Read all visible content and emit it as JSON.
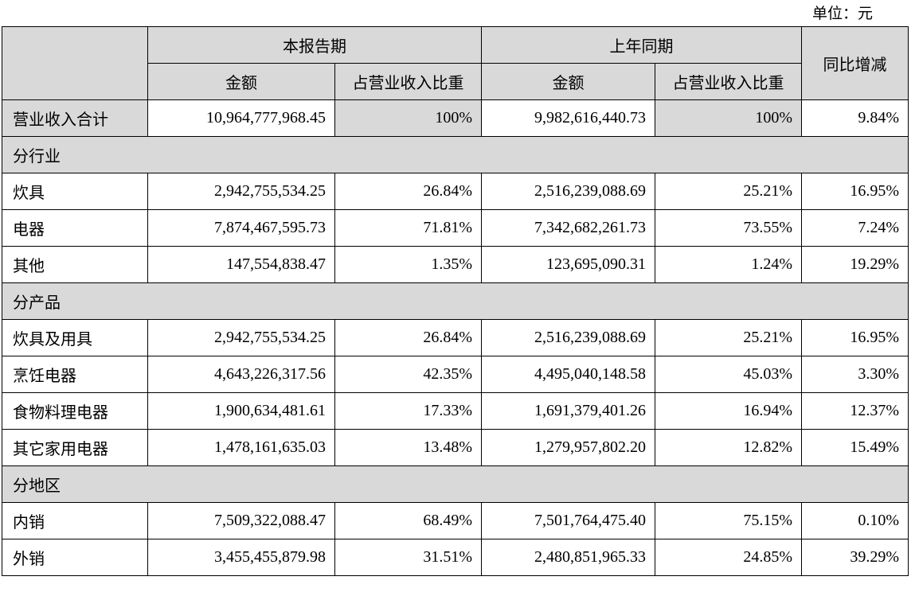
{
  "unit": "单位：元",
  "table": {
    "header": {
      "current": "本报告期",
      "previous": "上年同期",
      "yoy": "同比增减",
      "sub": [
        "金额",
        "占营业收入比重",
        "金额",
        "占营业收入比重"
      ]
    },
    "rows": [
      [
        "营业收入合计",
        "10,964,777,968.45",
        "100%",
        "9,982,616,440.73",
        "100%",
        "9.84%"
      ],
      [
        "分行业"
      ],
      [
        "炊具",
        "2,942,755,534.25",
        "26.84%",
        "2,516,239,088.69",
        "25.21%",
        "16.95%"
      ],
      [
        "电器",
        "7,874,467,595.73",
        "71.81%",
        "7,342,682,261.73",
        "73.55%",
        "7.24%"
      ],
      [
        "其他",
        "147,554,838.47",
        "1.35%",
        "123,695,090.31",
        "1.24%",
        "19.29%"
      ],
      [
        "分产品"
      ],
      [
        "炊具及用具",
        "2,942,755,534.25",
        "26.84%",
        "2,516,239,088.69",
        "25.21%",
        "16.95%"
      ],
      [
        "烹饪电器",
        "4,643,226,317.56",
        "42.35%",
        "4,495,040,148.58",
        "45.03%",
        "3.30%"
      ],
      [
        "食物料理电器",
        "1,900,634,481.61",
        "17.33%",
        "1,691,379,401.26",
        "16.94%",
        "12.37%"
      ],
      [
        "其它家用电器",
        "1,478,161,635.03",
        "13.48%",
        "1,279,957,802.20",
        "12.82%",
        "15.49%"
      ],
      [
        "分地区"
      ],
      [
        "内销",
        "7,509,322,088.47",
        "68.49%",
        "7,501,764,475.40",
        "75.15%",
        "0.10%"
      ],
      [
        "外销",
        "3,455,455,879.98",
        "31.51%",
        "2,480,851,965.33",
        "24.85%",
        "39.29%"
      ]
    ]
  }
}
